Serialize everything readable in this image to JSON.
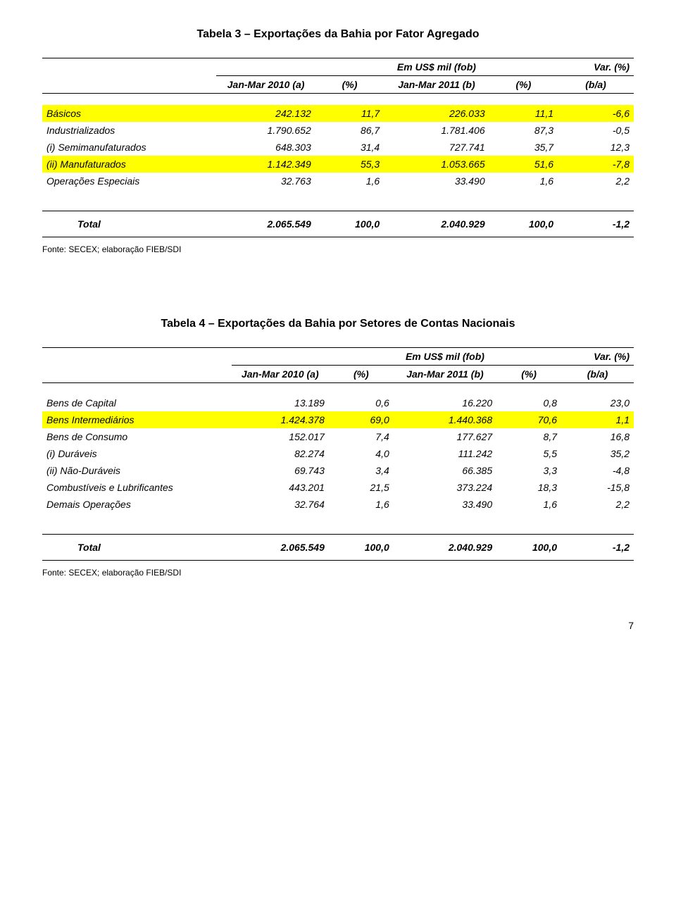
{
  "table3": {
    "title": "Tabela 3 – Exportações da Bahia por Fator Agregado",
    "header": {
      "usdLabel": "Em US$ mil (fob)",
      "varLabel": "Var. (%)",
      "col_a": "Jan-Mar 2010 (a)",
      "col_pa": "(%)",
      "col_b": "Jan-Mar 2011 (b)",
      "col_pb": "(%)",
      "col_ba": "(b/a)"
    },
    "rows": [
      {
        "label": "Básicos",
        "a": "242.132",
        "pa": "11,7",
        "b": "226.033",
        "pb": "11,1",
        "ba": "-6,6",
        "hl": true,
        "ital": true,
        "indent": 0
      },
      {
        "label": "Industrializados",
        "a": "1.790.652",
        "pa": "86,7",
        "b": "1.781.406",
        "pb": "87,3",
        "ba": "-0,5",
        "hl": false,
        "ital": true,
        "indent": 0
      },
      {
        "label": "(i) Semimanufaturados",
        "a": "648.303",
        "pa": "31,4",
        "b": "727.741",
        "pb": "35,7",
        "ba": "12,3",
        "hl": false,
        "ital": true,
        "indent": 1
      },
      {
        "label": "(ii) Manufaturados",
        "a": "1.142.349",
        "pa": "55,3",
        "b": "1.053.665",
        "pb": "51,6",
        "ba": "-7,8",
        "hl": true,
        "ital": true,
        "indent": 1
      },
      {
        "label": "Operações Especiais",
        "a": "32.763",
        "pa": "1,6",
        "b": "33.490",
        "pb": "1,6",
        "ba": "2,2",
        "hl": false,
        "ital": true,
        "indent": 0
      }
    ],
    "total": {
      "label": "Total",
      "a": "2.065.549",
      "pa": "100,0",
      "b": "2.040.929",
      "pb": "100,0",
      "ba": "-1,2"
    },
    "source": "Fonte: SECEX; elaboração FIEB/SDI"
  },
  "table4": {
    "title": "Tabela 4 – Exportações da Bahia por Setores de Contas Nacionais",
    "header": {
      "usdLabel": "Em US$ mil (fob)",
      "varLabel": "Var. (%)",
      "col_a": "Jan-Mar 2010 (a)",
      "col_pa": "(%)",
      "col_b": "Jan-Mar 2011 (b)",
      "col_pb": "(%)",
      "col_ba": "(b/a)"
    },
    "rows": [
      {
        "label": "Bens de Capital",
        "a": "13.189",
        "pa": "0,6",
        "b": "16.220",
        "pb": "0,8",
        "ba": "23,0",
        "hl": false,
        "ital": true,
        "indent": 0
      },
      {
        "label": "Bens Intermediários",
        "a": "1.424.378",
        "pa": "69,0",
        "b": "1.440.368",
        "pb": "70,6",
        "ba": "1,1",
        "hl": true,
        "ital": true,
        "indent": 0
      },
      {
        "label": "Bens de Consumo",
        "a": "152.017",
        "pa": "7,4",
        "b": "177.627",
        "pb": "8,7",
        "ba": "16,8",
        "hl": false,
        "ital": true,
        "indent": 0
      },
      {
        "label": "(i) Duráveis",
        "a": "82.274",
        "pa": "4,0",
        "b": "111.242",
        "pb": "5,5",
        "ba": "35,2",
        "hl": false,
        "ital": true,
        "indent": 1
      },
      {
        "label": "(ii) Não-Duráveis",
        "a": "69.743",
        "pa": "3,4",
        "b": "66.385",
        "pb": "3,3",
        "ba": "-4,8",
        "hl": false,
        "ital": true,
        "indent": 1
      },
      {
        "label": "Combustíveis e Lubrificantes",
        "a": "443.201",
        "pa": "21,5",
        "b": "373.224",
        "pb": "18,3",
        "ba": "-15,8",
        "hl": false,
        "ital": true,
        "indent": 0
      },
      {
        "label": "Demais Operações",
        "a": "32.764",
        "pa": "1,6",
        "b": "33.490",
        "pb": "1,6",
        "ba": "2,2",
        "hl": false,
        "ital": true,
        "indent": 0
      }
    ],
    "total": {
      "label": "Total",
      "a": "2.065.549",
      "pa": "100,0",
      "b": "2.040.929",
      "pb": "100,0",
      "ba": "-1,2"
    },
    "source": "Fonte: SECEX; elaboração FIEB/SDI"
  },
  "pageNumber": "7",
  "colors": {
    "highlight": "#ffff00",
    "text": "#000000",
    "background": "#ffffff"
  }
}
